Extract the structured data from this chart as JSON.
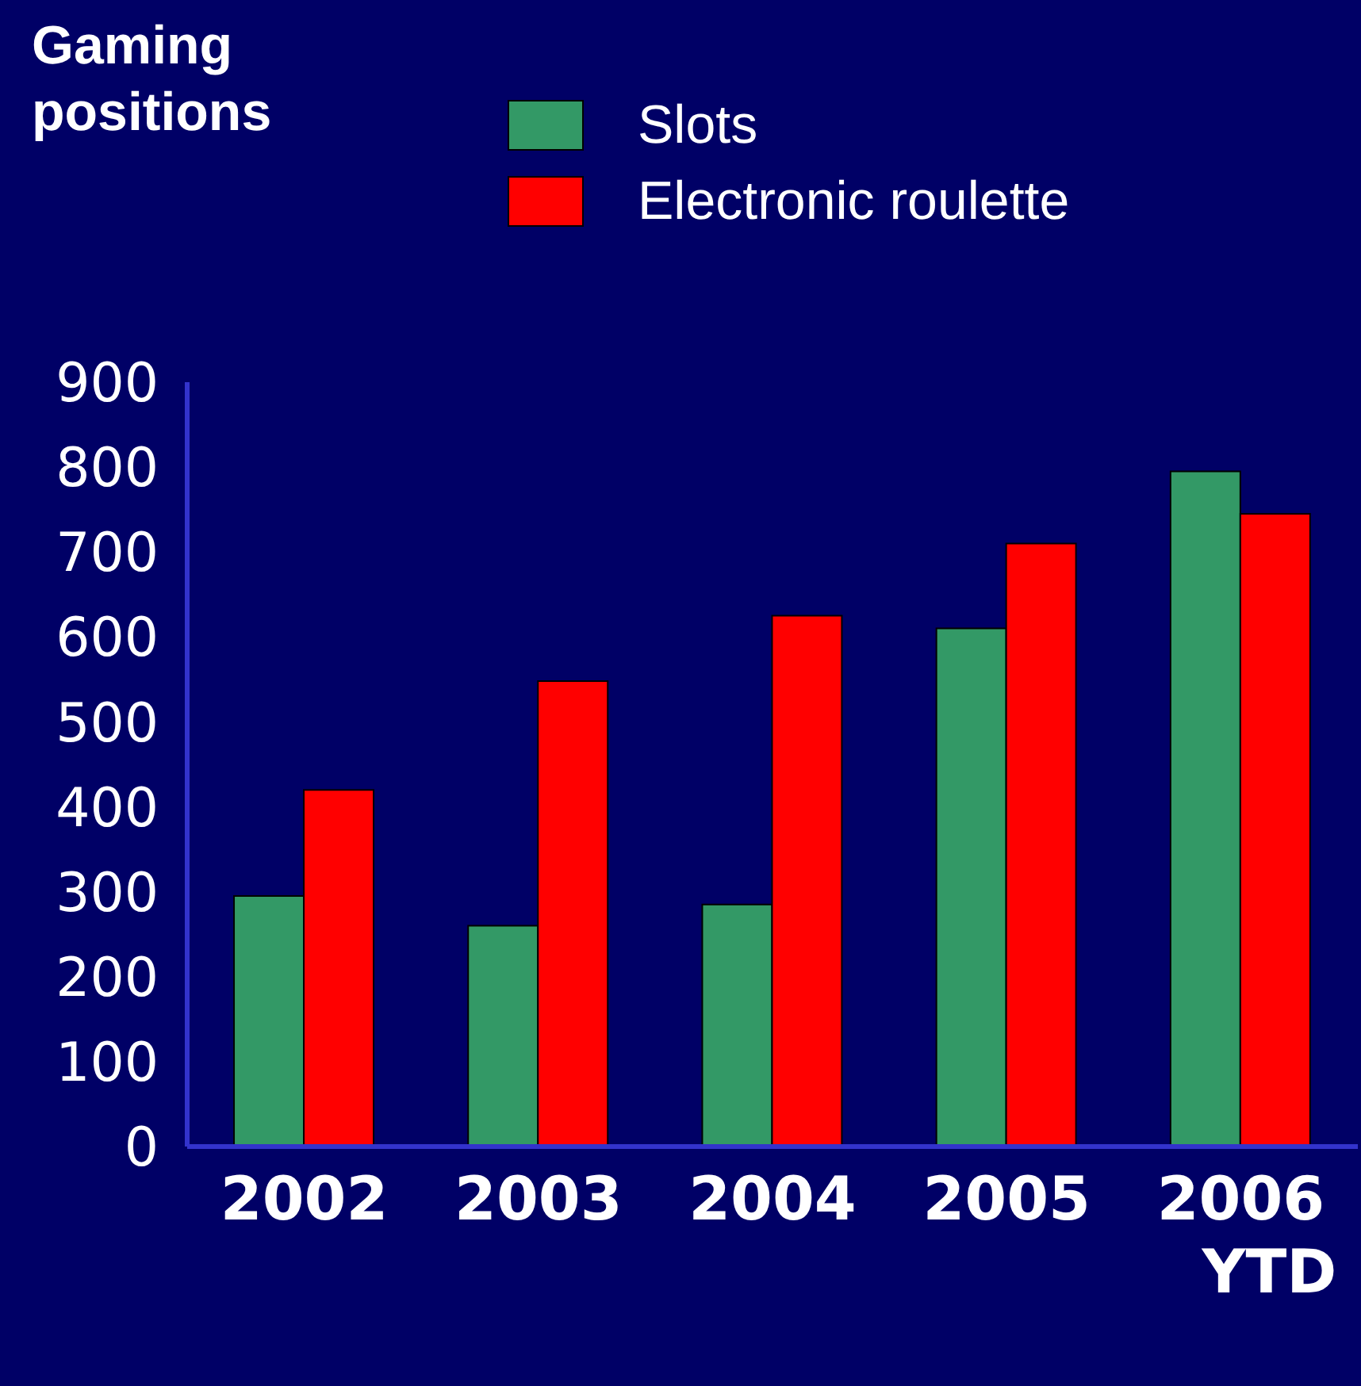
{
  "chart_data": {
    "type": "bar",
    "ylabel": "Gaming positions",
    "categories": [
      "2002",
      "2003",
      "2004",
      "2005",
      "2006 YTD"
    ],
    "series": [
      {
        "name": "Slots",
        "color": "#339966",
        "values": [
          295,
          260,
          285,
          610,
          795
        ]
      },
      {
        "name": "Electronic roulette",
        "color": "#ff0000",
        "values": [
          420,
          548,
          625,
          710,
          745
        ]
      }
    ],
    "ylim": [
      0,
      900
    ],
    "yticks": [
      0,
      100,
      200,
      300,
      400,
      500,
      600,
      700,
      800,
      900
    ],
    "grid": false,
    "legend": "top"
  }
}
